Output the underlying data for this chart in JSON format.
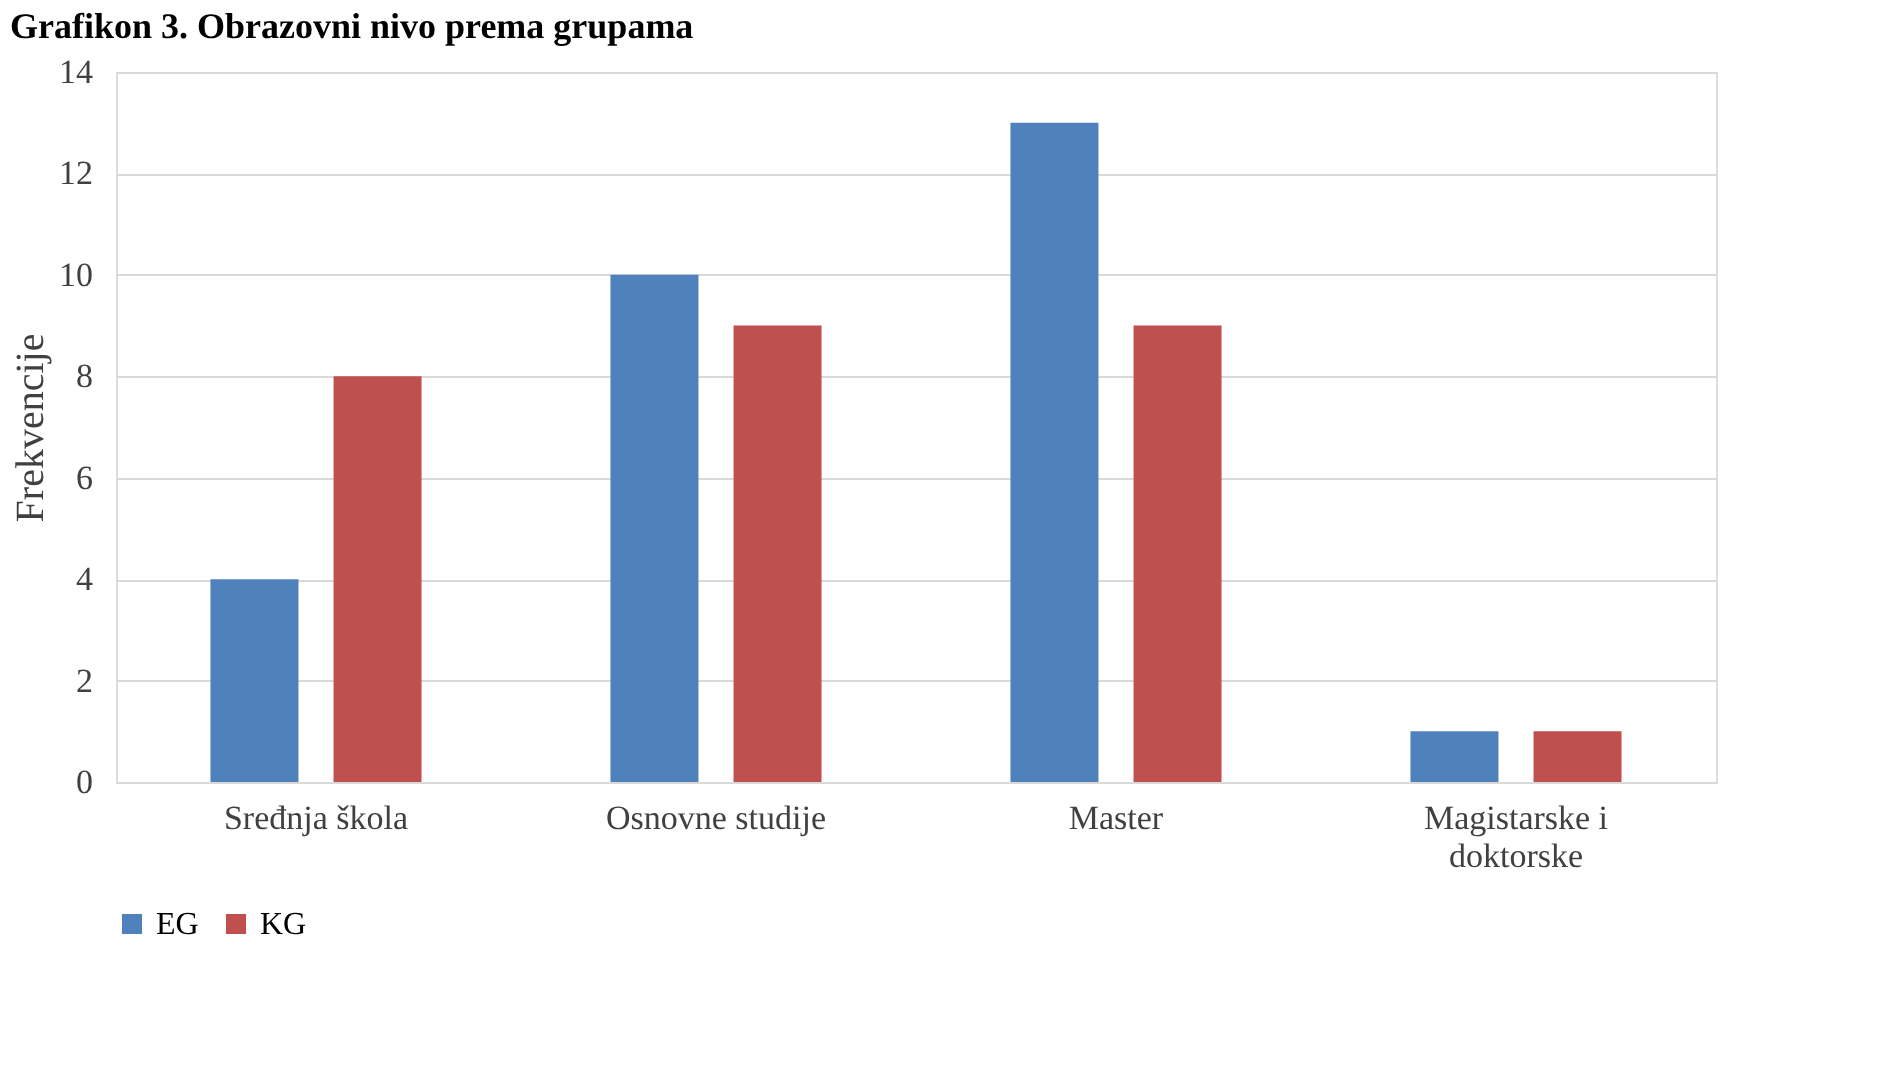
{
  "chart_data": {
    "type": "bar",
    "title": "Grafikon 3. Obrazovni nivo prema grupama",
    "ylabel": "Frekvencije",
    "categories": [
      "Sređnja škola",
      "Osnovne studije",
      "Master",
      "Magistarske i doktorske"
    ],
    "series": [
      {
        "name": "EG",
        "color": "#4f81bd",
        "values": [
          4,
          10,
          13,
          1
        ]
      },
      {
        "name": "KG",
        "color": "#c0504d",
        "values": [
          8,
          9,
          9,
          1
        ]
      }
    ],
    "ylim": [
      0,
      14
    ],
    "yticks": [
      0,
      2,
      4,
      6,
      8,
      10,
      12,
      14
    ],
    "grid": "y",
    "legend": "bottom"
  }
}
